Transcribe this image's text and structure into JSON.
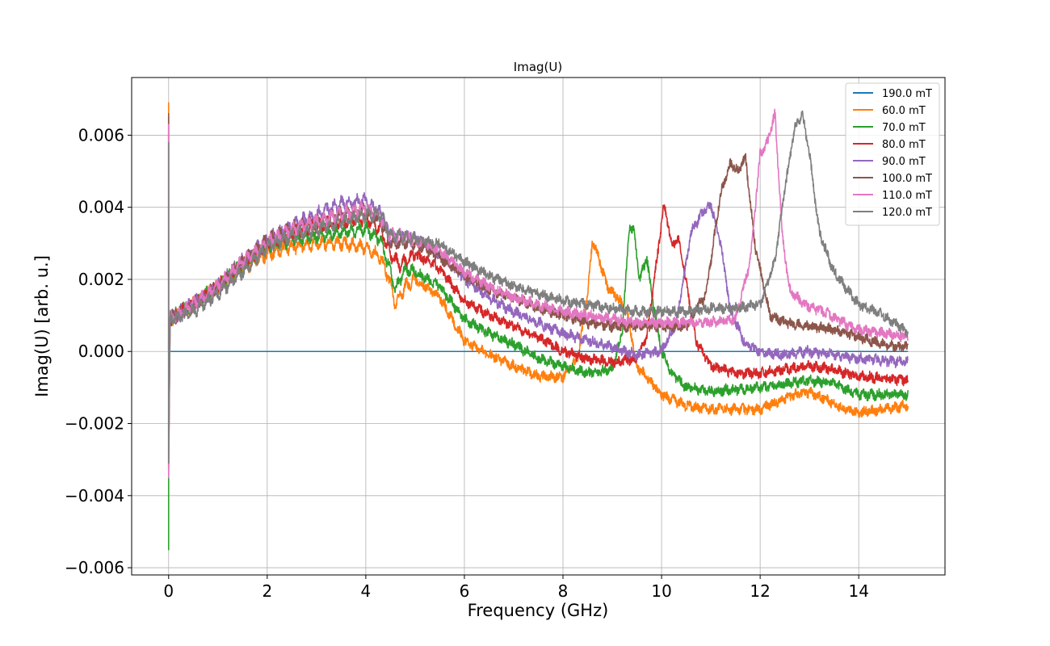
{
  "chart_data": {
    "type": "line",
    "title": "Imag(U)",
    "xlabel": "Frequency (GHz)",
    "ylabel": "Imag(U) [arb. u.]",
    "xlim": [
      -0.75,
      15.75
    ],
    "ylim": [
      -0.0062,
      0.0076
    ],
    "xticks": [
      0,
      2,
      4,
      6,
      8,
      10,
      12,
      14
    ],
    "xtick_labels": [
      "0",
      "2",
      "4",
      "6",
      "8",
      "10",
      "12",
      "14"
    ],
    "yticks": [
      -0.006,
      -0.004,
      -0.002,
      0.0,
      0.002,
      0.004,
      0.006
    ],
    "ytick_labels": [
      "−0.006",
      "−0.004",
      "−0.002",
      "0.000",
      "0.002",
      "0.004",
      "0.006"
    ],
    "grid": true,
    "legend_position": "top-right",
    "series": [
      {
        "name": "190.0 mT",
        "color": "#1f77b4",
        "spike": [],
        "noise": 0,
        "ripple": 0,
        "x": [
          0,
          15
        ],
        "y": [
          0.0,
          0.0
        ]
      },
      {
        "name": "60.0 mT",
        "color": "#ff7f0e",
        "spike": [
          0.0069,
          -0.0033
        ],
        "noise": 0.00012,
        "ripple": 0.00012,
        "x": [
          0.0,
          0.03,
          0.5,
          1.0,
          1.5,
          2.0,
          2.5,
          3.0,
          3.5,
          4.0,
          4.3,
          4.5,
          4.6,
          4.8,
          5.0,
          5.5,
          6.0,
          6.5,
          7.0,
          7.5,
          8.0,
          8.3,
          8.5,
          8.6,
          8.7,
          8.9,
          9.1,
          9.3,
          9.5,
          10.0,
          10.5,
          11.0,
          11.5,
          12.0,
          12.5,
          12.9,
          13.3,
          13.7,
          14.0,
          14.5,
          15.0
        ],
        "y": [
          0.0,
          0.0009,
          0.0013,
          0.0018,
          0.0023,
          0.0027,
          0.0029,
          0.003,
          0.003,
          0.0029,
          0.0026,
          0.0019,
          0.0013,
          0.0018,
          0.002,
          0.0015,
          0.0003,
          -0.0001,
          -0.0004,
          -0.0007,
          -0.0007,
          -0.0002,
          0.0016,
          0.0031,
          0.0027,
          0.0018,
          0.0015,
          0.0011,
          -0.0004,
          -0.0012,
          -0.0015,
          -0.0016,
          -0.0016,
          -0.0016,
          -0.0013,
          -0.0011,
          -0.0013,
          -0.0016,
          -0.0017,
          -0.0016,
          -0.0015
        ]
      },
      {
        "name": "70.0 mT",
        "color": "#2ca02c",
        "spike": [
          -0.0055,
          0.0003
        ],
        "noise": 0.00012,
        "ripple": 0.00012,
        "x": [
          0.0,
          0.03,
          0.5,
          1.0,
          1.5,
          2.0,
          2.5,
          3.0,
          3.5,
          4.0,
          4.3,
          4.5,
          4.6,
          4.8,
          5.0,
          5.5,
          6.0,
          6.5,
          7.0,
          7.5,
          8.0,
          8.5,
          9.0,
          9.2,
          9.35,
          9.45,
          9.55,
          9.7,
          9.8,
          10.0,
          10.2,
          10.5,
          11.0,
          12.0,
          12.5,
          13.0,
          13.5,
          14.0,
          14.5,
          15.0
        ],
        "y": [
          0.0,
          0.0009,
          0.0013,
          0.0018,
          0.0024,
          0.0029,
          0.0031,
          0.0032,
          0.0033,
          0.0034,
          0.0031,
          0.0022,
          0.0017,
          0.0023,
          0.0022,
          0.0018,
          0.0009,
          0.0005,
          0.0002,
          -0.0002,
          -0.0004,
          -0.0006,
          -0.0005,
          0.0005,
          0.0035,
          0.0033,
          0.002,
          0.0026,
          0.0016,
          0.0,
          -0.0006,
          -0.001,
          -0.0011,
          -0.001,
          -0.0009,
          -0.0008,
          -0.0009,
          -0.0012,
          -0.0012,
          -0.0012
        ]
      },
      {
        "name": "80.0 mT",
        "color": "#d62728",
        "spike": [
          0.0065,
          0.0004
        ],
        "noise": 0.00012,
        "ripple": 0.00012,
        "x": [
          0.0,
          0.03,
          0.5,
          1.0,
          1.5,
          2.0,
          2.5,
          3.0,
          3.5,
          4.0,
          4.3,
          4.5,
          4.7,
          5.0,
          5.5,
          6.0,
          6.5,
          7.0,
          7.5,
          8.0,
          8.5,
          9.0,
          9.5,
          9.7,
          9.9,
          10.05,
          10.2,
          10.35,
          10.5,
          10.7,
          11.0,
          11.5,
          12.0,
          12.5,
          13.0,
          13.5,
          14.0,
          15.0
        ],
        "y": [
          0.0,
          0.0009,
          0.0013,
          0.0018,
          0.0024,
          0.003,
          0.0033,
          0.0035,
          0.0036,
          0.0037,
          0.0034,
          0.0027,
          0.0024,
          0.0027,
          0.0023,
          0.0014,
          0.001,
          0.0007,
          0.0004,
          0.0,
          -0.0002,
          -0.0003,
          -0.0002,
          0.0004,
          0.0025,
          0.0041,
          0.003,
          0.0031,
          0.0019,
          0.0003,
          -0.0004,
          -0.0006,
          -0.0006,
          -0.0005,
          -0.0004,
          -0.0005,
          -0.0007,
          -0.0008
        ]
      },
      {
        "name": "90.0 mT",
        "color": "#9467bd",
        "spike": [
          0.0061,
          -0.0032
        ],
        "noise": 0.00012,
        "ripple": 0.00013,
        "x": [
          0.0,
          0.03,
          0.5,
          1.0,
          1.5,
          2.0,
          2.5,
          3.0,
          3.5,
          4.0,
          4.3,
          4.5,
          4.7,
          5.0,
          5.5,
          6.0,
          6.5,
          7.0,
          7.5,
          8.0,
          8.5,
          9.0,
          9.5,
          10.0,
          10.3,
          10.6,
          10.8,
          11.0,
          11.2,
          11.4,
          11.7,
          12.0,
          12.5,
          13.0,
          13.5,
          14.0,
          15.0
        ],
        "y": [
          0.0,
          0.0009,
          0.0013,
          0.0018,
          0.0025,
          0.0031,
          0.0035,
          0.0038,
          0.0041,
          0.0042,
          0.0038,
          0.0031,
          0.0031,
          0.0031,
          0.0027,
          0.002,
          0.0015,
          0.0011,
          0.0008,
          0.0005,
          0.0003,
          0.0001,
          -0.0001,
          0.0,
          0.0008,
          0.0033,
          0.0038,
          0.0041,
          0.003,
          0.0011,
          0.0002,
          0.0,
          -0.0001,
          0.0,
          -0.0001,
          -0.0002,
          -0.0003
        ]
      },
      {
        "name": "100.0 mT",
        "color": "#8c564b",
        "spike": [
          0.0066,
          0.0007
        ],
        "noise": 0.00012,
        "ripple": 0.00012,
        "x": [
          0.0,
          0.03,
          0.5,
          1.0,
          1.5,
          2.0,
          2.5,
          3.0,
          3.5,
          4.0,
          4.3,
          4.5,
          4.7,
          5.0,
          5.5,
          6.0,
          6.5,
          7.0,
          7.5,
          8.0,
          8.5,
          9.0,
          9.5,
          10.0,
          10.5,
          10.9,
          11.2,
          11.4,
          11.55,
          11.7,
          11.9,
          12.2,
          12.5,
          13.0,
          13.5,
          14.0,
          14.5,
          15.0
        ],
        "y": [
          0.0,
          0.0009,
          0.0013,
          0.0018,
          0.0025,
          0.0031,
          0.0034,
          0.0036,
          0.0038,
          0.0039,
          0.0036,
          0.003,
          0.003,
          0.003,
          0.0026,
          0.0021,
          0.0017,
          0.0015,
          0.0012,
          0.001,
          0.0008,
          0.0007,
          0.0007,
          0.0007,
          0.0007,
          0.0016,
          0.0044,
          0.0052,
          0.005,
          0.0054,
          0.0029,
          0.001,
          0.0008,
          0.0007,
          0.0006,
          0.0004,
          0.0002,
          0.0001
        ]
      },
      {
        "name": "110.0 mT",
        "color": "#e377c2",
        "spike": [
          0.0063,
          -0.0035
        ],
        "noise": 0.00012,
        "ripple": 0.00012,
        "x": [
          0.0,
          0.03,
          0.5,
          1.0,
          1.5,
          2.0,
          2.5,
          3.0,
          3.5,
          4.0,
          4.3,
          4.5,
          4.7,
          5.0,
          5.5,
          6.0,
          6.5,
          7.0,
          7.5,
          8.0,
          8.5,
          9.0,
          9.5,
          10.0,
          10.5,
          11.0,
          11.5,
          11.8,
          12.0,
          12.15,
          12.3,
          12.45,
          12.6,
          12.9,
          13.3,
          13.7,
          14.0,
          14.5,
          15.0
        ],
        "y": [
          0.0,
          0.0009,
          0.0013,
          0.0018,
          0.0025,
          0.003,
          0.0034,
          0.0036,
          0.0038,
          0.004,
          0.0037,
          0.0032,
          0.0032,
          0.0031,
          0.0028,
          0.0022,
          0.0018,
          0.0015,
          0.0013,
          0.0011,
          0.001,
          0.0009,
          0.0008,
          0.0008,
          0.0008,
          0.0008,
          0.0009,
          0.0025,
          0.0055,
          0.0058,
          0.0066,
          0.0032,
          0.0017,
          0.0013,
          0.0011,
          0.0008,
          0.0006,
          0.0005,
          0.0004
        ]
      },
      {
        "name": "120.0 mT",
        "color": "#7f7f7f",
        "spike": [
          0.0058,
          -0.0031
        ],
        "noise": 0.00012,
        "ripple": 0.00012,
        "x": [
          0.0,
          0.03,
          0.5,
          1.0,
          1.5,
          2.0,
          2.5,
          3.0,
          3.5,
          4.0,
          4.3,
          4.5,
          4.7,
          5.0,
          5.5,
          6.0,
          6.5,
          7.0,
          7.5,
          8.0,
          8.5,
          9.0,
          9.5,
          10.0,
          10.5,
          11.0,
          11.5,
          12.0,
          12.3,
          12.5,
          12.7,
          12.85,
          13.0,
          13.2,
          13.5,
          14.0,
          14.5,
          15.0
        ],
        "y": [
          0.0,
          0.0009,
          0.0011,
          0.0016,
          0.0022,
          0.0029,
          0.0032,
          0.0034,
          0.0036,
          0.0038,
          0.0038,
          0.0032,
          0.0032,
          0.0031,
          0.003,
          0.0025,
          0.0021,
          0.0018,
          0.0016,
          0.0014,
          0.0013,
          0.0012,
          0.0011,
          0.0011,
          0.0011,
          0.0012,
          0.0012,
          0.0013,
          0.0025,
          0.0045,
          0.0062,
          0.0066,
          0.0055,
          0.0033,
          0.0022,
          0.0013,
          0.001,
          0.0005
        ]
      }
    ]
  }
}
